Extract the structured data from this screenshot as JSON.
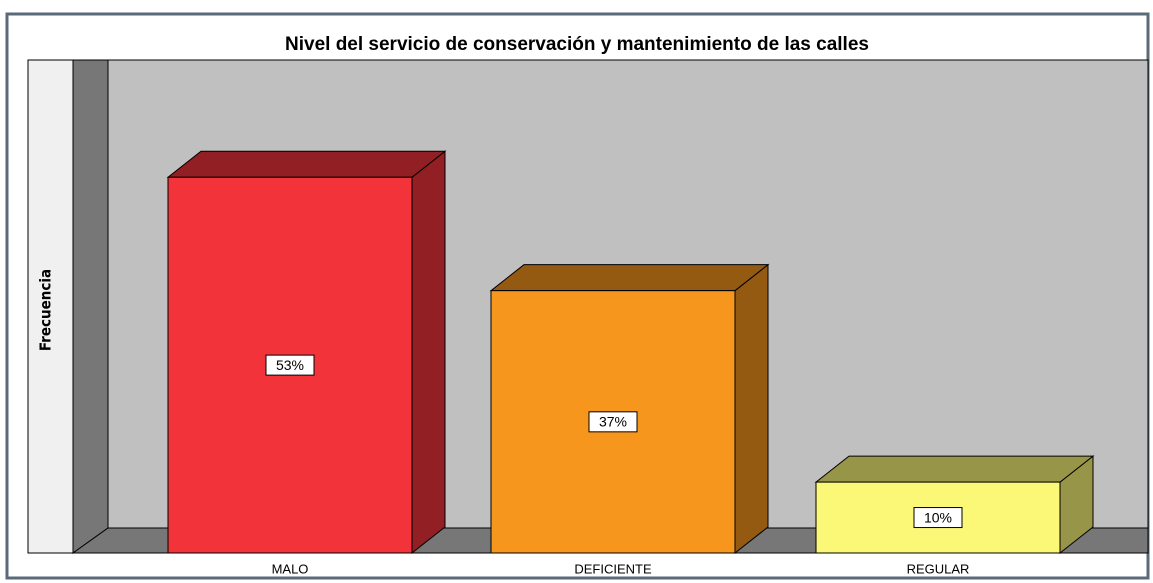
{
  "chart_data": {
    "type": "bar3d",
    "title": "Nivel del servicio de conservación y mantenimiento de las calles",
    "y_label": "Frecuencia",
    "categories": [
      "MALO",
      "DEFICIENTE",
      "REGULAR"
    ],
    "values": [
      53,
      37,
      10
    ],
    "value_labels": [
      "53%",
      "37%",
      "10%"
    ],
    "colors": [
      "#f2333a",
      "#f7961d",
      "#fbf877"
    ]
  }
}
